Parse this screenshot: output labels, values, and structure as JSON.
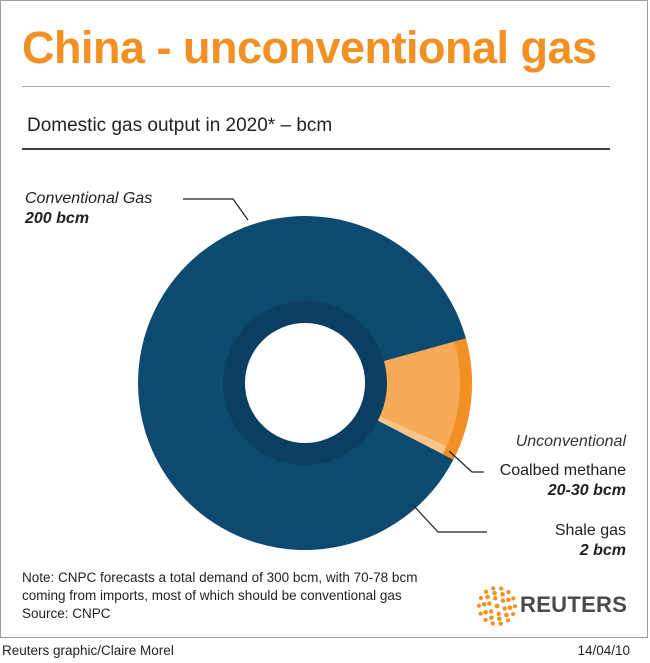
{
  "title": "China - unconventional gas",
  "subtitle": "Domestic gas output in 2020* – bcm",
  "chart_data": {
    "type": "pie",
    "variant": "donut",
    "slices": [
      {
        "key": "conventional",
        "label": "Conventional Gas",
        "value_label": "200 bcm",
        "value": 200,
        "color": "#0d4a70"
      },
      {
        "key": "coalbed",
        "label": "Coalbed methane",
        "value_label": "20-30 bcm",
        "value": 25,
        "color": "#f8aa57"
      },
      {
        "key": "shale",
        "label": "Shale gas",
        "value_label": "2 bcm",
        "value": 2,
        "color": "#fbc488"
      }
    ],
    "group_label": "Unconventional"
  },
  "note": {
    "text": "Note: CNPC forecasts a total demand of 300 bcm, with 70-78 bcm coming from imports, most of which should be conventional gas",
    "source": "Source: CNPC"
  },
  "logo": {
    "text": "REUTERS",
    "color": "#f39023"
  },
  "footer": {
    "credit": "Reuters graphic/Claire Morel",
    "date": "14/04/10"
  },
  "colors": {
    "accent": "#f39023",
    "conventional": "#0d4a70",
    "unconventional": "#f8aa57"
  }
}
